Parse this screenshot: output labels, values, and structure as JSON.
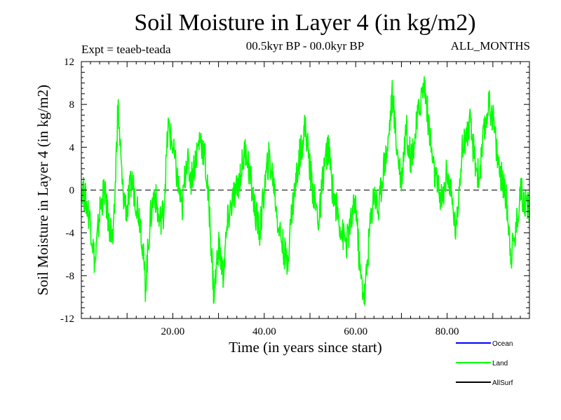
{
  "header": {
    "title": "Soil Moisture in Layer 4 (in kg/m2)",
    "experiment": "Expt = teaeb-teada",
    "period": "00.5kyr BP - 00.0kyr BP",
    "months": "ALL_MONTHS"
  },
  "chart_data": {
    "type": "line",
    "title": "Soil Moisture in Layer 4 (in kg/m2)",
    "xlabel": "Time (in years since start)",
    "ylabel": "Soil Moisture in Layer 4 (in kg/m2)",
    "xlim": [
      0,
      98
    ],
    "ylim": [
      -12,
      12
    ],
    "x_ticks": [
      20,
      40,
      60,
      80
    ],
    "x_tick_labels": [
      "20.00",
      "40.00",
      "60.00",
      "80.00"
    ],
    "y_ticks": [
      -12,
      -8,
      -4,
      0,
      4,
      8,
      12
    ],
    "y_tick_labels": [
      "-12",
      "-8",
      "-4",
      "0",
      "4",
      "8",
      "12"
    ],
    "reference_line": 0,
    "legend_position": "bottom-right",
    "series": [
      {
        "name": "Ocean",
        "color": "#0000ff",
        "x": [],
        "values": []
      },
      {
        "name": "Land",
        "color": "#00ff00",
        "x": [
          0,
          1,
          2,
          3,
          4,
          5,
          6,
          7,
          8,
          9,
          10,
          11,
          12,
          13,
          14,
          15,
          16,
          17,
          18,
          19,
          20,
          21,
          22,
          23,
          24,
          25,
          26,
          27,
          28,
          29,
          30,
          31,
          32,
          33,
          34,
          35,
          36,
          37,
          38,
          39,
          40,
          41,
          42,
          43,
          44,
          45,
          46,
          47,
          48,
          49,
          50,
          51,
          52,
          53,
          54,
          55,
          56,
          57,
          58,
          59,
          60,
          61,
          62,
          63,
          64,
          65,
          66,
          67,
          68,
          69,
          70,
          71,
          72,
          73,
          74,
          75,
          76,
          77,
          78,
          79,
          80,
          81,
          82,
          83,
          84,
          85,
          86,
          87,
          88,
          89,
          90,
          91,
          92,
          93,
          94,
          95,
          96,
          97,
          98
        ],
        "values": [
          0.5,
          -1,
          -3,
          -7,
          -2,
          0,
          -3,
          -5,
          8,
          0,
          -2,
          1,
          -1,
          -3,
          -9,
          -3,
          0,
          -3,
          -2,
          6,
          4,
          1,
          -2,
          3,
          1,
          3,
          5,
          3,
          -2,
          -10,
          -5,
          -8,
          -3,
          -1,
          0,
          2,
          4,
          1,
          -2,
          -4,
          0,
          3,
          1,
          -3,
          -5,
          -7,
          -2,
          1,
          4,
          6,
          2,
          -1,
          -3,
          2,
          4,
          0,
          -2,
          -4,
          -5,
          -3,
          -1,
          -8,
          -10,
          -4,
          0,
          -2,
          2,
          4,
          9,
          4,
          1,
          6,
          3,
          5,
          8,
          10,
          6,
          2,
          0,
          -1,
          2,
          -1,
          -4,
          3,
          5,
          6,
          3,
          1,
          5,
          8,
          7,
          3,
          1,
          -1,
          -6,
          -4,
          0,
          -1,
          -2
        ]
      },
      {
        "name": "AllSurf",
        "color": "#000000",
        "x": [],
        "values": []
      }
    ]
  }
}
